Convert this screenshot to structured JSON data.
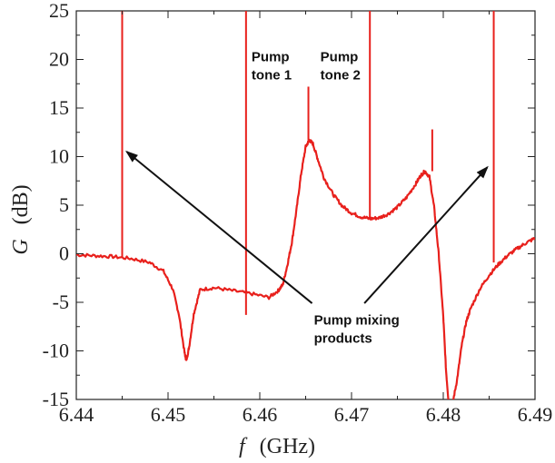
{
  "chart_data": {
    "type": "line",
    "xlabel_symbol": "f",
    "xlabel_unit": "(GHz)",
    "ylabel_symbol": "G",
    "ylabel_unit": "(dB)",
    "xlim": [
      6.44,
      6.49
    ],
    "ylim": [
      -15,
      25
    ],
    "x_ticks": [
      6.44,
      6.45,
      6.46,
      6.47,
      6.48,
      6.49
    ],
    "x_tick_labels": [
      "6.44",
      "6.45",
      "6.46",
      "6.47",
      "6.48",
      "6.49"
    ],
    "y_ticks": [
      -15,
      -10,
      -5,
      0,
      5,
      10,
      15,
      20,
      25
    ],
    "y_tick_labels": [
      "-15",
      "-10",
      "-5",
      "0",
      "5",
      "10",
      "15",
      "20",
      "25"
    ],
    "grid": false,
    "series": [
      {
        "color": "#e8201c",
        "x": [
          6.44,
          6.442,
          6.444,
          6.446,
          6.448,
          6.4495,
          6.4505,
          6.4512,
          6.4518,
          6.452,
          6.4523,
          6.4528,
          6.4535,
          6.455,
          6.457,
          6.459,
          6.461,
          6.462,
          6.4625,
          6.463,
          6.4635,
          6.464,
          6.4645,
          6.465,
          6.4654,
          6.4658,
          6.4663,
          6.467,
          6.468,
          6.469,
          6.47,
          6.471,
          6.472,
          6.473,
          6.474,
          6.475,
          6.476,
          6.477,
          6.4775,
          6.478,
          6.4785,
          6.479,
          6.4795,
          6.48,
          6.4803,
          6.4806,
          6.481,
          6.4815,
          6.482,
          6.4825,
          6.483,
          6.484,
          6.485,
          6.486,
          6.487,
          6.488,
          6.489,
          6.49
        ],
        "y": [
          -0.1,
          -0.2,
          -0.3,
          -0.5,
          -0.9,
          -1.8,
          -3.6,
          -6.3,
          -10.2,
          -11.0,
          -9.6,
          -6.2,
          -3.7,
          -3.5,
          -3.8,
          -4.1,
          -4.5,
          -3.8,
          -3.2,
          -1.2,
          1.2,
          4.5,
          8.2,
          11.0,
          11.7,
          11.3,
          9.8,
          7.8,
          6.1,
          4.9,
          4.2,
          3.8,
          3.6,
          3.7,
          4.1,
          4.8,
          5.8,
          7.2,
          8.0,
          8.5,
          7.9,
          4.8,
          0.0,
          -6.5,
          -12.0,
          -15.5,
          -15.5,
          -13.0,
          -9.5,
          -7.0,
          -5.6,
          -3.6,
          -2.2,
          -1.1,
          -0.2,
          0.5,
          1.1,
          1.6
        ]
      }
    ],
    "spikes": [
      {
        "x": 6.445,
        "y_from": -0.3,
        "y_to": 25
      },
      {
        "x": 6.4585,
        "y_from": -6.3,
        "y_to": 25
      },
      {
        "x": 6.4653,
        "y_from": 11.7,
        "y_to": 17.2
      },
      {
        "x": 6.472,
        "y_from": 3.6,
        "y_to": 25
      },
      {
        "x": 6.4788,
        "y_from": 8.5,
        "y_to": 12.8
      },
      {
        "x": 6.4855,
        "y_from": -0.9,
        "y_to": 25
      }
    ],
    "annotations": [
      {
        "lines": [
          "Pump",
          "tone 1"
        ],
        "x": 6.4591,
        "y": 19.8
      },
      {
        "lines": [
          "Pump",
          "tone 2"
        ],
        "x": 6.4666,
        "y": 19.8
      },
      {
        "lines": [
          "Pump mixing",
          "products"
        ],
        "x": 6.4659,
        "y": -7.3
      }
    ],
    "arrows": [
      {
        "from_x": 6.4657,
        "from_y": -5.1,
        "to_x": 6.4455,
        "to_y": 10.5
      },
      {
        "from_x": 6.4714,
        "from_y": -5.1,
        "to_x": 6.4848,
        "to_y": 8.9
      }
    ]
  }
}
